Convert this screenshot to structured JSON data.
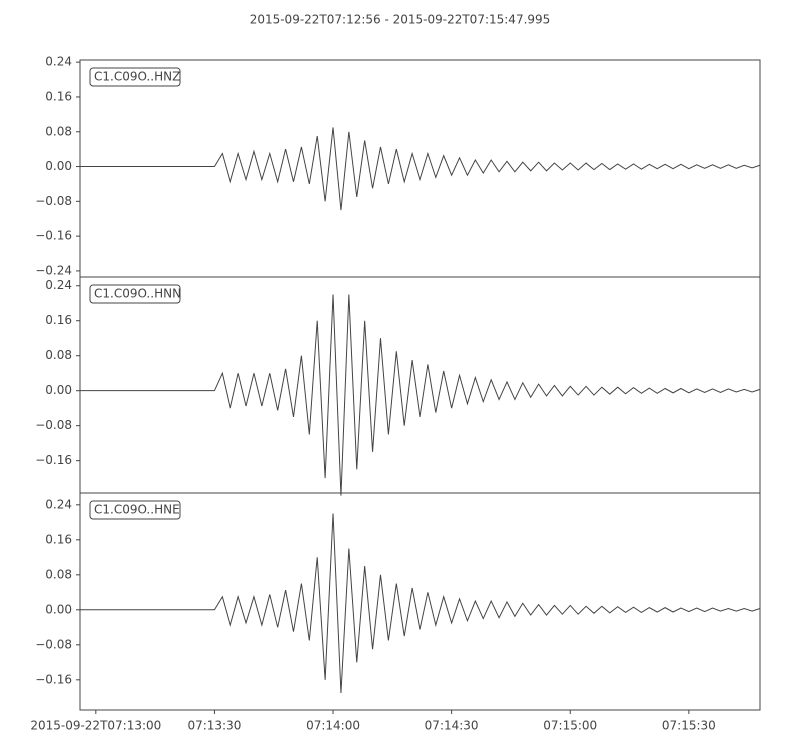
{
  "chart_data": {
    "type": "line",
    "title": "2015-09-22T07:12:56  -  2015-09-22T07:15:47.995",
    "xlim": [
      "2015-09-22T07:12:56",
      "2015-09-22T07:15:47.995"
    ],
    "xticks": [
      "2015-09-22T07:13:00",
      {
        "value": "2015-09-22T07:13:30",
        "label": "07:13:30"
      },
      {
        "value": "2015-09-22T07:14:00",
        "label": "07:14:00"
      },
      {
        "value": "2015-09-22T07:14:30",
        "label": "07:14:30"
      },
      {
        "value": "2015-09-22T07:15:00",
        "label": "07:15:00"
      },
      {
        "value": "2015-09-22T07:15:30",
        "label": "07:15:30"
      }
    ],
    "x": [
      "2015-09-22T07:12:56",
      "2015-09-22T07:12:58",
      "2015-09-22T07:13:00",
      "2015-09-22T07:13:02",
      "2015-09-22T07:13:04",
      "2015-09-22T07:13:06",
      "2015-09-22T07:13:08",
      "2015-09-22T07:13:10",
      "2015-09-22T07:13:12",
      "2015-09-22T07:13:14",
      "2015-09-22T07:13:16",
      "2015-09-22T07:13:18",
      "2015-09-22T07:13:20",
      "2015-09-22T07:13:22",
      "2015-09-22T07:13:24",
      "2015-09-22T07:13:26",
      "2015-09-22T07:13:28",
      "2015-09-22T07:13:30",
      "2015-09-22T07:13:32",
      "2015-09-22T07:13:34",
      "2015-09-22T07:13:36",
      "2015-09-22T07:13:38",
      "2015-09-22T07:13:40",
      "2015-09-22T07:13:42",
      "2015-09-22T07:13:44",
      "2015-09-22T07:13:46",
      "2015-09-22T07:13:48",
      "2015-09-22T07:13:50",
      "2015-09-22T07:13:52",
      "2015-09-22T07:13:54",
      "2015-09-22T07:13:56",
      "2015-09-22T07:13:58",
      "2015-09-22T07:14:00",
      "2015-09-22T07:14:02",
      "2015-09-22T07:14:04",
      "2015-09-22T07:14:06",
      "2015-09-22T07:14:08",
      "2015-09-22T07:14:10",
      "2015-09-22T07:14:12",
      "2015-09-22T07:14:14",
      "2015-09-22T07:14:16",
      "2015-09-22T07:14:18",
      "2015-09-22T07:14:20",
      "2015-09-22T07:14:22",
      "2015-09-22T07:14:24",
      "2015-09-22T07:14:26",
      "2015-09-22T07:14:28",
      "2015-09-22T07:14:30",
      "2015-09-22T07:14:32",
      "2015-09-22T07:14:34",
      "2015-09-22T07:14:36",
      "2015-09-22T07:14:38",
      "2015-09-22T07:14:40",
      "2015-09-22T07:14:42",
      "2015-09-22T07:14:44",
      "2015-09-22T07:14:46",
      "2015-09-22T07:14:48",
      "2015-09-22T07:14:50",
      "2015-09-22T07:14:52",
      "2015-09-22T07:14:54",
      "2015-09-22T07:14:56",
      "2015-09-22T07:14:58",
      "2015-09-22T07:15:00",
      "2015-09-22T07:15:02",
      "2015-09-22T07:15:04",
      "2015-09-22T07:15:06",
      "2015-09-22T07:15:08",
      "2015-09-22T07:15:10",
      "2015-09-22T07:15:12",
      "2015-09-22T07:15:14",
      "2015-09-22T07:15:16",
      "2015-09-22T07:15:18",
      "2015-09-22T07:15:20",
      "2015-09-22T07:15:22",
      "2015-09-22T07:15:24",
      "2015-09-22T07:15:26",
      "2015-09-22T07:15:28",
      "2015-09-22T07:15:30",
      "2015-09-22T07:15:32",
      "2015-09-22T07:15:34",
      "2015-09-22T07:15:36",
      "2015-09-22T07:15:38",
      "2015-09-22T07:15:40",
      "2015-09-22T07:15:42",
      "2015-09-22T07:15:44",
      "2015-09-22T07:15:46",
      "2015-09-22T07:15:47.995"
    ],
    "series": [
      {
        "name": "C1.C09O..HNZ",
        "color": "#444444",
        "ylim": [
          -0.254,
          0.245
        ],
        "yticks": [
          {
            "value": -0.24,
            "label": "−0.24"
          },
          {
            "value": -0.16,
            "label": "−0.16"
          },
          {
            "value": -0.08,
            "label": "−0.08"
          },
          {
            "value": 0,
            "label": "0.00"
          },
          0.08,
          0.16,
          0.24
        ],
        "values": [
          0,
          0,
          0,
          0,
          0,
          0,
          0,
          0,
          0,
          0,
          0,
          0,
          0,
          0,
          0,
          0,
          0,
          0,
          0.03,
          -0.035,
          0.03,
          -0.03,
          0.035,
          -0.03,
          0.03,
          -0.035,
          0.04,
          -0.035,
          0.045,
          -0.04,
          0.07,
          -0.08,
          0.09,
          -0.1,
          0.08,
          -0.07,
          0.06,
          -0.05,
          0.045,
          -0.04,
          0.04,
          -0.035,
          0.03,
          -0.03,
          0.03,
          -0.025,
          0.025,
          -0.02,
          0.02,
          -0.02,
          0.015,
          -0.015,
          0.015,
          -0.012,
          0.012,
          -0.012,
          0.01,
          -0.01,
          0.01,
          -0.01,
          0.008,
          -0.008,
          0.008,
          -0.008,
          0.008,
          -0.007,
          0.007,
          -0.007,
          0.006,
          -0.006,
          0.006,
          -0.006,
          0.005,
          -0.005,
          0.005,
          -0.005,
          0.005,
          -0.005,
          0.004,
          -0.004,
          0.004,
          -0.004,
          0.004,
          -0.004,
          0.003,
          -0.003,
          0.003
        ]
      },
      {
        "name": "C1.C09O..HNN",
        "color": "#444444",
        "ylim": [
          -0.234,
          0.26
        ],
        "yticks": [
          {
            "value": -0.16,
            "label": "−0.16"
          },
          {
            "value": -0.08,
            "label": "−0.08"
          },
          {
            "value": 0,
            "label": "0.00"
          },
          0.08,
          0.16,
          0.24
        ],
        "values": [
          0,
          0,
          0,
          0,
          0,
          0,
          0,
          0,
          0,
          0,
          0,
          0,
          0,
          0,
          0,
          0,
          0,
          0,
          0.04,
          -0.04,
          0.04,
          -0.035,
          0.04,
          -0.035,
          0.04,
          -0.045,
          0.05,
          -0.06,
          0.08,
          -0.1,
          0.16,
          -0.2,
          0.22,
          -0.24,
          0.22,
          -0.18,
          0.16,
          -0.14,
          0.12,
          -0.1,
          0.09,
          -0.08,
          0.07,
          -0.06,
          0.06,
          -0.05,
          0.045,
          -0.04,
          0.035,
          -0.03,
          0.03,
          -0.025,
          0.025,
          -0.02,
          0.02,
          -0.02,
          0.018,
          -0.015,
          0.015,
          -0.012,
          0.012,
          -0.012,
          0.01,
          -0.01,
          0.01,
          -0.01,
          0.008,
          -0.008,
          0.008,
          -0.007,
          0.007,
          -0.006,
          0.006,
          -0.006,
          0.005,
          -0.005,
          0.005,
          -0.005,
          0.004,
          -0.004,
          0.004,
          -0.004,
          0.004,
          -0.003,
          0.003,
          -0.003,
          0.003
        ]
      },
      {
        "name": "C1.C09O..HNE",
        "color": "#444444",
        "ylim": [
          -0.229,
          0.267
        ],
        "yticks": [
          {
            "value": -0.16,
            "label": "−0.16"
          },
          {
            "value": -0.08,
            "label": "−0.08"
          },
          {
            "value": 0,
            "label": "0.00"
          },
          0.08,
          0.16,
          0.24
        ],
        "values": [
          0,
          0,
          0,
          0,
          0,
          0,
          0,
          0,
          0,
          0,
          0,
          0,
          0,
          0,
          0,
          0,
          0,
          0,
          0.03,
          -0.035,
          0.03,
          -0.03,
          0.03,
          -0.035,
          0.035,
          -0.04,
          0.045,
          -0.05,
          0.06,
          -0.07,
          0.12,
          -0.16,
          0.22,
          -0.19,
          0.14,
          -0.12,
          0.1,
          -0.09,
          0.08,
          -0.07,
          0.06,
          -0.06,
          0.05,
          -0.045,
          0.04,
          -0.035,
          0.03,
          -0.03,
          0.025,
          -0.025,
          0.02,
          -0.02,
          0.02,
          -0.018,
          0.018,
          -0.015,
          0.015,
          -0.012,
          0.012,
          -0.012,
          0.01,
          -0.01,
          0.01,
          -0.01,
          0.008,
          -0.008,
          0.008,
          -0.007,
          0.007,
          -0.006,
          0.006,
          -0.006,
          0.005,
          -0.005,
          0.005,
          -0.005,
          0.004,
          -0.004,
          0.004,
          -0.004,
          0.004,
          -0.003,
          0.003,
          -0.003,
          0.003,
          -0.003,
          0.003
        ]
      }
    ]
  }
}
